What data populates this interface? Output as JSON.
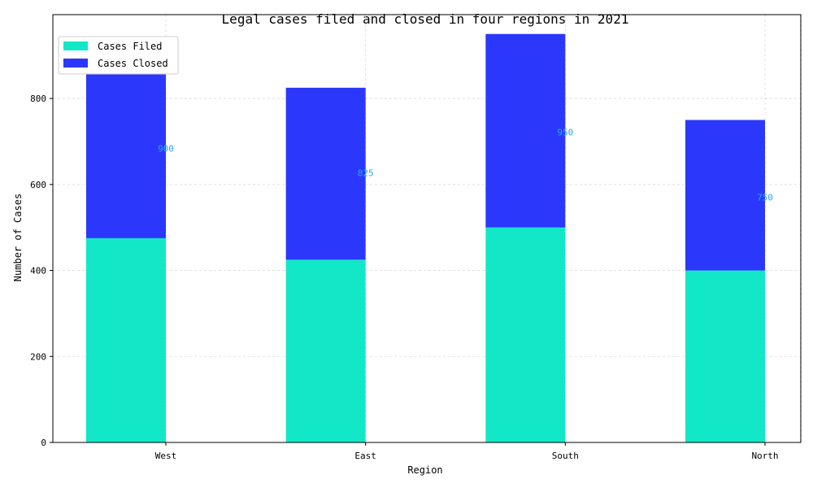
{
  "chart_data": {
    "type": "bar",
    "stacked": true,
    "title": "Legal cases filed and closed in four regions in 2021",
    "xlabel": "Region",
    "ylabel": "Number of Cases",
    "categories": [
      "West",
      "East",
      "South",
      "North"
    ],
    "series": [
      {
        "name": "Cases Filed",
        "values": [
          475,
          425,
          500,
          400
        ],
        "color": "#12e8c8"
      },
      {
        "name": "Cases Closed",
        "values": [
          425,
          400,
          450,
          350
        ],
        "color": "#2b38fb"
      }
    ],
    "total_labels": [
      "900",
      "825",
      "950",
      "750"
    ],
    "total_label_color": "#2aa7f0",
    "ylim": [
      0,
      995
    ],
    "yticks": [
      0,
      200,
      400,
      600,
      800
    ],
    "grid": true,
    "legend_position": "top-left"
  }
}
